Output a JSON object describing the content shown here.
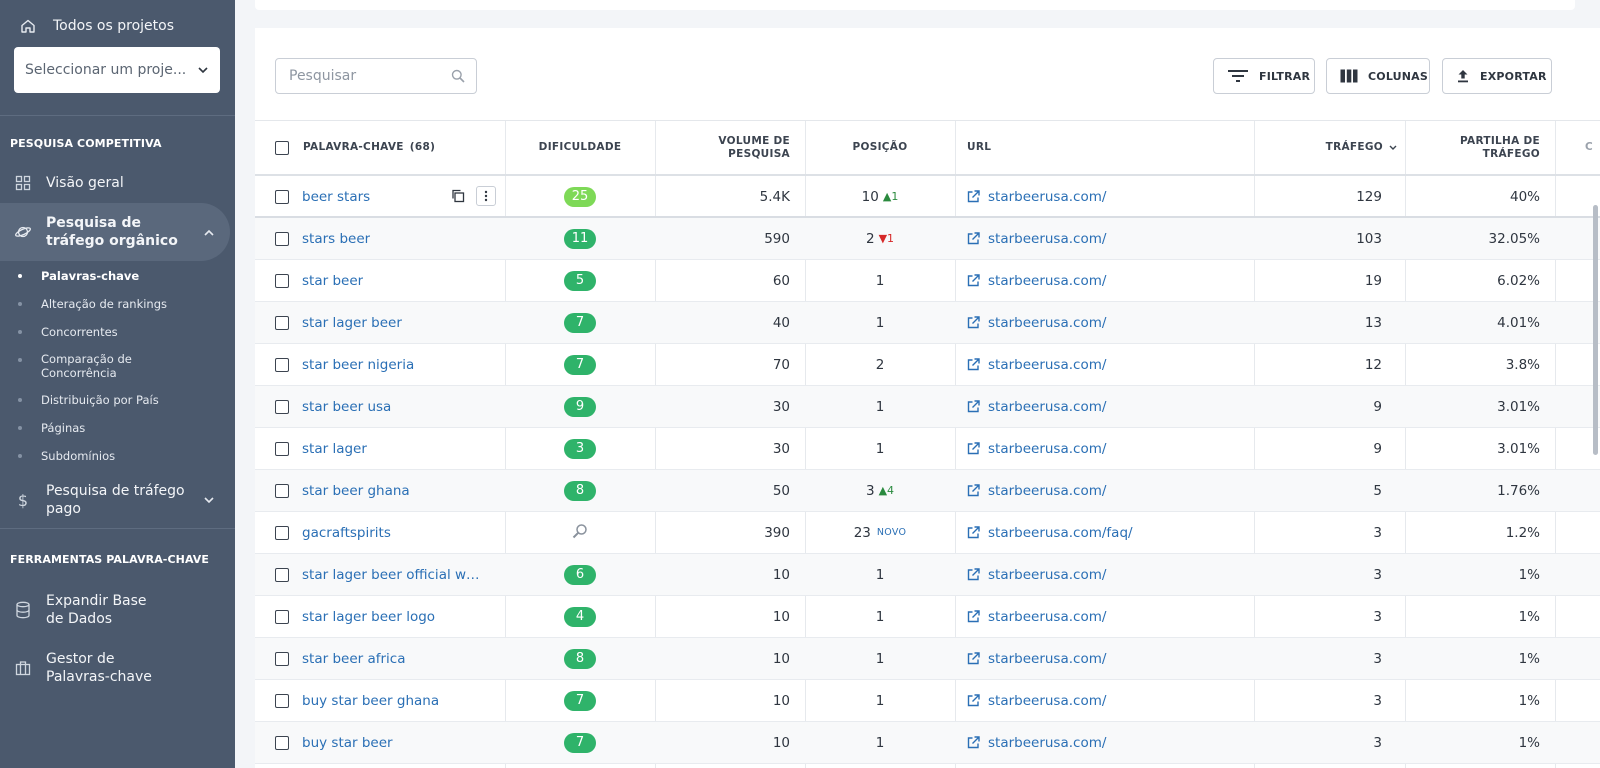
{
  "sidebar": {
    "all_projects": "Todos os projetos",
    "project_select_placeholder": "Seleccionar um proje...",
    "section_competitive": "PESQUISA COMPETITIVA",
    "overview": "Visão geral",
    "organic": "Pesquisa de tráfego orgânico",
    "sub_items": [
      "Palavras-chave",
      "Alteração de rankings",
      "Concorrentes",
      "Comparação de Concorrência",
      "Distribuição por País",
      "Páginas",
      "Subdomínios"
    ],
    "paid": "Pesquisa de tráfego pago",
    "section_keyword_tools": "FERRAMENTAS PALAVRA-CHAVE",
    "expand_db": "Expandir Base de Dados",
    "keyword_manager": "Gestor de Palavras-chave"
  },
  "toolbar": {
    "search_placeholder": "Pesquisar",
    "filter": "FILTRAR",
    "columns": "COLUNAS",
    "export": "EXPORTAR"
  },
  "table": {
    "headers": {
      "keyword": "PALAVRA-CHAVE",
      "keyword_count": "(68)",
      "difficulty": "DIFICULDADE",
      "volume_l1": "VOLUME DE",
      "volume_l2": "PESQUISA",
      "position": "POSIÇÃO",
      "url": "URL",
      "traffic": "TRÁFEGO",
      "share_l1": "PARTILHA DE",
      "share_l2": "TRÁFEGO",
      "next_partial": "C"
    },
    "rows": [
      {
        "keyword": "beer stars",
        "difficulty": "25",
        "volume": "5.4K",
        "position": "10",
        "change": "1",
        "change_dir": "up",
        "url": "starbeerusa.com/",
        "traffic": "129",
        "share": "40%"
      },
      {
        "keyword": "stars beer",
        "difficulty": "11",
        "volume": "590",
        "position": "2",
        "change": "1",
        "change_dir": "down",
        "url": "starbeerusa.com/",
        "traffic": "103",
        "share": "32.05%"
      },
      {
        "keyword": "star beer",
        "difficulty": "5",
        "volume": "60",
        "position": "1",
        "change": "",
        "change_dir": "",
        "url": "starbeerusa.com/",
        "traffic": "19",
        "share": "6.02%"
      },
      {
        "keyword": "star lager beer",
        "difficulty": "7",
        "volume": "40",
        "position": "1",
        "change": "",
        "change_dir": "",
        "url": "starbeerusa.com/",
        "traffic": "13",
        "share": "4.01%"
      },
      {
        "keyword": "star beer nigeria",
        "difficulty": "7",
        "volume": "70",
        "position": "2",
        "change": "",
        "change_dir": "",
        "url": "starbeerusa.com/",
        "traffic": "12",
        "share": "3.8%"
      },
      {
        "keyword": "star beer usa",
        "difficulty": "9",
        "volume": "30",
        "position": "1",
        "change": "",
        "change_dir": "",
        "url": "starbeerusa.com/",
        "traffic": "9",
        "share": "3.01%"
      },
      {
        "keyword": "star lager",
        "difficulty": "3",
        "volume": "30",
        "position": "1",
        "change": "",
        "change_dir": "",
        "url": "starbeerusa.com/",
        "traffic": "9",
        "share": "3.01%"
      },
      {
        "keyword": "star beer ghana",
        "difficulty": "8",
        "volume": "50",
        "position": "3",
        "change": "4",
        "change_dir": "up",
        "url": "starbeerusa.com/",
        "traffic": "5",
        "share": "1.76%"
      },
      {
        "keyword": "gacraftspirits",
        "difficulty": "",
        "volume": "390",
        "position": "23",
        "change": "NOVO",
        "change_dir": "new",
        "url": "starbeerusa.com/faq/",
        "traffic": "3",
        "share": "1.2%"
      },
      {
        "keyword": "star lager beer official webs...",
        "difficulty": "6",
        "volume": "10",
        "position": "1",
        "change": "",
        "change_dir": "",
        "url": "starbeerusa.com/",
        "traffic": "3",
        "share": "1%"
      },
      {
        "keyword": "star lager beer logo",
        "difficulty": "4",
        "volume": "10",
        "position": "1",
        "change": "",
        "change_dir": "",
        "url": "starbeerusa.com/",
        "traffic": "3",
        "share": "1%"
      },
      {
        "keyword": "star beer africa",
        "difficulty": "8",
        "volume": "10",
        "position": "1",
        "change": "",
        "change_dir": "",
        "url": "starbeerusa.com/",
        "traffic": "3",
        "share": "1%"
      },
      {
        "keyword": "buy star beer ghana",
        "difficulty": "7",
        "volume": "10",
        "position": "1",
        "change": "",
        "change_dir": "",
        "url": "starbeerusa.com/",
        "traffic": "3",
        "share": "1%"
      },
      {
        "keyword": "buy star beer",
        "difficulty": "7",
        "volume": "10",
        "position": "1",
        "change": "",
        "change_dir": "",
        "url": "starbeerusa.com/",
        "traffic": "3",
        "share": "1%"
      }
    ]
  },
  "colors": {
    "sidebar_bg": "#4b596d",
    "link": "#2a6fb5",
    "difficulty_easy": "#2fb36a",
    "difficulty_light": "#7ed957",
    "trend_up": "#2a8a3e",
    "trend_down": "#d62828"
  }
}
